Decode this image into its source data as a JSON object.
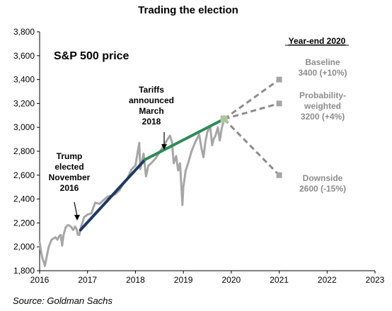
{
  "chart_data": {
    "type": "line",
    "title": "Trading the election",
    "subtitle": "S&P 500 price",
    "source": "Source: Goldman Sachs",
    "xlim": [
      2016,
      2023
    ],
    "ylim": [
      1800,
      3800
    ],
    "x_ticks": [
      "2016",
      "2017",
      "2018",
      "2019",
      "2020",
      "2021",
      "2022",
      "2023"
    ],
    "y_ticks": [
      "1,800",
      "2,000",
      "2,200",
      "2,400",
      "2,600",
      "2,800",
      "3,000",
      "3,200",
      "3,400",
      "3,600",
      "3,800"
    ],
    "grid": false,
    "series": [
      {
        "role": "price",
        "color": "#a6a6a6",
        "points": [
          [
            2016.0,
            2040
          ],
          [
            2016.03,
            1960
          ],
          [
            2016.06,
            1900
          ],
          [
            2016.09,
            1870
          ],
          [
            2016.11,
            1840
          ],
          [
            2016.13,
            1880
          ],
          [
            2016.16,
            1940
          ],
          [
            2016.19,
            2000
          ],
          [
            2016.22,
            2030
          ],
          [
            2016.25,
            2060
          ],
          [
            2016.29,
            2070
          ],
          [
            2016.33,
            2080
          ],
          [
            2016.37,
            2060
          ],
          [
            2016.41,
            2090
          ],
          [
            2016.44,
            2100
          ],
          [
            2016.47,
            2010
          ],
          [
            2016.5,
            2100
          ],
          [
            2016.54,
            2160
          ],
          [
            2016.58,
            2180
          ],
          [
            2016.62,
            2180
          ],
          [
            2016.66,
            2165
          ],
          [
            2016.7,
            2140
          ],
          [
            2016.74,
            2170
          ],
          [
            2016.77,
            2150
          ],
          [
            2016.8,
            2100
          ],
          [
            2016.83,
            2100
          ],
          [
            2016.86,
            2160
          ],
          [
            2016.89,
            2200
          ],
          [
            2016.93,
            2250
          ],
          [
            2016.97,
            2260
          ],
          [
            2017.0,
            2270
          ],
          [
            2017.08,
            2280
          ],
          [
            2017.16,
            2370
          ],
          [
            2017.25,
            2360
          ],
          [
            2017.33,
            2390
          ],
          [
            2017.42,
            2420
          ],
          [
            2017.5,
            2430
          ],
          [
            2017.58,
            2440
          ],
          [
            2017.66,
            2470
          ],
          [
            2017.75,
            2530
          ],
          [
            2017.83,
            2570
          ],
          [
            2017.92,
            2650
          ],
          [
            2018.0,
            2680
          ],
          [
            2018.05,
            2800
          ],
          [
            2018.08,
            2870
          ],
          [
            2018.1,
            2650
          ],
          [
            2018.13,
            2700
          ],
          [
            2018.17,
            2780
          ],
          [
            2018.22,
            2590
          ],
          [
            2018.27,
            2680
          ],
          [
            2018.33,
            2700
          ],
          [
            2018.42,
            2740
          ],
          [
            2018.5,
            2790
          ],
          [
            2018.58,
            2840
          ],
          [
            2018.67,
            2900
          ],
          [
            2018.72,
            2930
          ],
          [
            2018.76,
            2880
          ],
          [
            2018.8,
            2700
          ],
          [
            2018.85,
            2760
          ],
          [
            2018.89,
            2640
          ],
          [
            2018.93,
            2700
          ],
          [
            2018.96,
            2500
          ],
          [
            2018.98,
            2350
          ],
          [
            2019.0,
            2500
          ],
          [
            2019.05,
            2640
          ],
          [
            2019.1,
            2700
          ],
          [
            2019.17,
            2800
          ],
          [
            2019.25,
            2880
          ],
          [
            2019.33,
            2940
          ],
          [
            2019.38,
            2820
          ],
          [
            2019.42,
            2750
          ],
          [
            2019.46,
            2880
          ],
          [
            2019.5,
            2960
          ],
          [
            2019.56,
            3010
          ],
          [
            2019.6,
            2850
          ],
          [
            2019.63,
            2900
          ],
          [
            2019.67,
            2930
          ],
          [
            2019.72,
            3000
          ],
          [
            2019.76,
            2890
          ],
          [
            2019.8,
            2990
          ],
          [
            2019.85,
            3070
          ]
        ]
      },
      {
        "role": "post-election trend",
        "color": "#1f3864",
        "points": [
          [
            2016.85,
            2140
          ],
          [
            2018.2,
            2730
          ]
        ]
      },
      {
        "role": "post-tariffs trend",
        "color": "#2e8b57",
        "points": [
          [
            2018.2,
            2730
          ],
          [
            2019.85,
            3070
          ]
        ]
      }
    ],
    "scenarios": {
      "origin": [
        2019.85,
        3070
      ],
      "heading": "Year-end 2020",
      "items": [
        {
          "label_1": "Baseline",
          "label_2": "3400 (+10%)",
          "x": 2021,
          "y": 3400
        },
        {
          "label_1": "Probability-",
          "label_1b": "weighted",
          "label_2": "3200 (+4%)",
          "x": 2021,
          "y": 3200
        },
        {
          "label_1": "Downside",
          "label_2": "2600 (-15%)",
          "x": 2021,
          "y": 2600
        }
      ]
    },
    "annotations": [
      {
        "lines": [
          "Trump",
          "elected",
          "November",
          "2016"
        ],
        "x": 2016.85,
        "y": 2140
      },
      {
        "lines": [
          "Tariffs",
          "announced",
          "March",
          "2018"
        ],
        "x": 2018.2,
        "y": 2730
      }
    ]
  }
}
